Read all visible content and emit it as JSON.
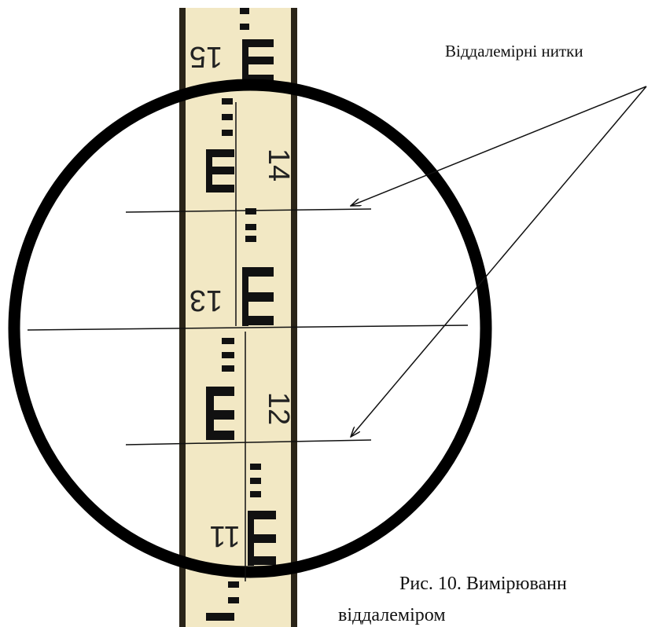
{
  "annotation": {
    "label": "Віддалемірні нитки"
  },
  "caption": {
    "lines": [
      "Рис. 10. Вимірюванн",
      "віддалеміром"
    ]
  },
  "rod": {
    "numbers": [
      "15",
      "14",
      "13",
      "12",
      "11"
    ]
  }
}
